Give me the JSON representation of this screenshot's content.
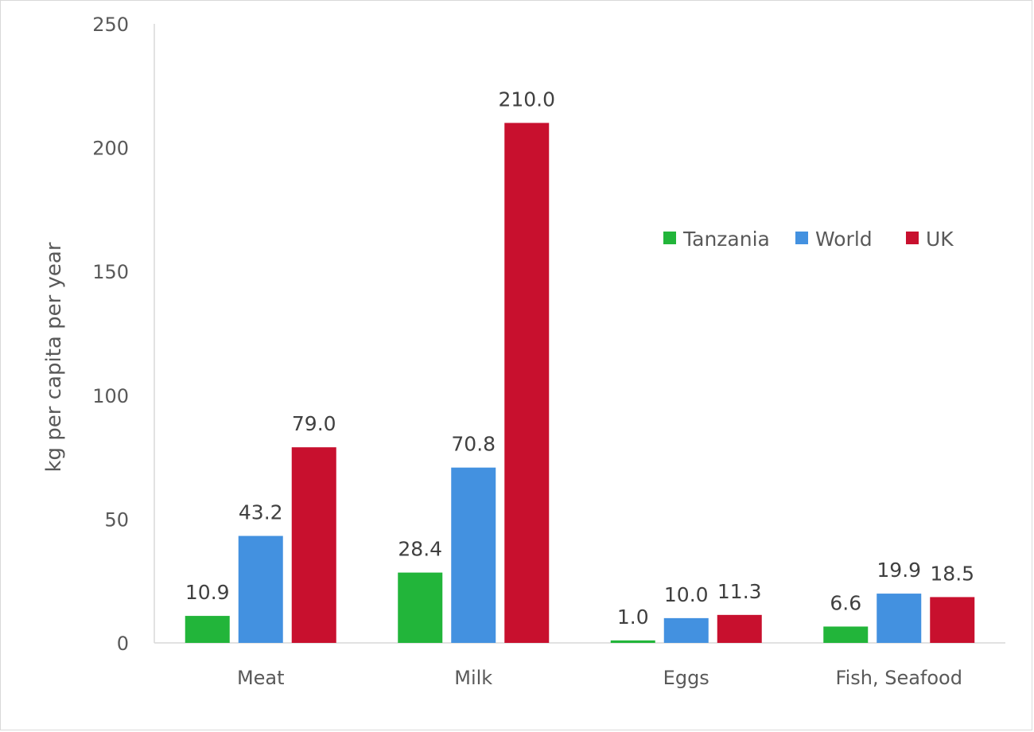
{
  "chart_data": {
    "type": "bar",
    "title": "",
    "xlabel": "",
    "ylabel": "kg per capita per year",
    "ylim": [
      0,
      250
    ],
    "yticks": [
      0,
      50,
      100,
      150,
      200,
      250
    ],
    "categories": [
      "Meat",
      "Milk",
      "Eggs",
      "Fish, Seafood"
    ],
    "series": [
      {
        "name": "Tanzania",
        "color": "#22b53a",
        "values": [
          10.9,
          28.4,
          1.0,
          6.6
        ],
        "labels": [
          "10.9",
          "28.4",
          "1.0",
          "6.6"
        ]
      },
      {
        "name": "World",
        "color": "#4391e0",
        "values": [
          43.2,
          70.8,
          10.0,
          19.9
        ],
        "labels": [
          "43.2",
          "70.8",
          "10.0",
          "19.9"
        ]
      },
      {
        "name": "UK",
        "color": "#c8102e",
        "values": [
          79.0,
          210.0,
          11.3,
          18.5
        ],
        "labels": [
          "79.0",
          "210.0",
          "11.3",
          "18.5"
        ]
      }
    ],
    "grid": false,
    "legend_position": "top-right"
  }
}
